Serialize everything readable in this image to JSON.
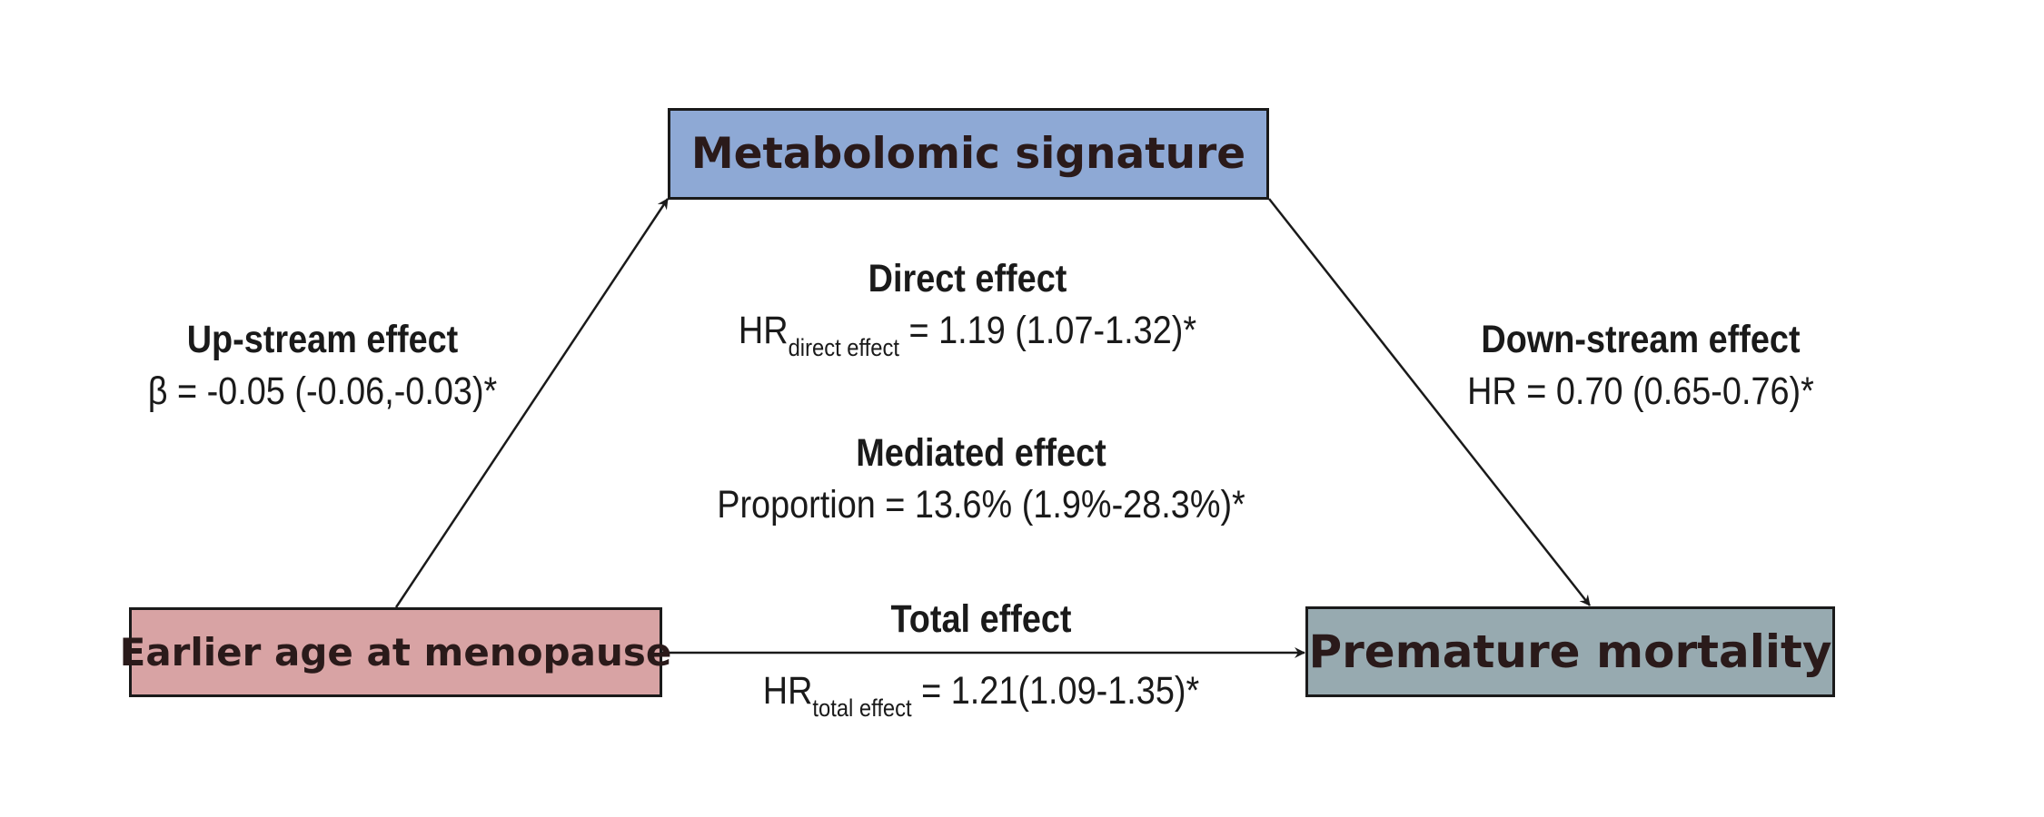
{
  "colors": {
    "mediator": "#8ea9d5",
    "exposure": "#d8a3a4",
    "outcome": "#97aab0",
    "line": "#1a1a1a"
  },
  "nodes": {
    "mediator": "Metabolomic signature",
    "exposure": "Earlier age at menopause",
    "outcome": "Premature mortality"
  },
  "upstream": {
    "title": "Up-stream effect",
    "value": "β = -0.05 (-0.06,-0.03)*"
  },
  "direct": {
    "title": "Direct effect",
    "prefix": "HR",
    "subscript": "direct effect",
    "value": " = 1.19 (1.07-1.32)*"
  },
  "mediated": {
    "title": "Mediated effect",
    "value": "Proportion = 13.6% (1.9%-28.3%)*"
  },
  "downstream": {
    "title": "Down-stream effect",
    "value": "HR = 0.70 (0.65-0.76)*"
  },
  "total": {
    "title": "Total effect",
    "prefix": "HR",
    "subscript": "total effect",
    "value": " = 1.21(1.09-1.35)*"
  }
}
